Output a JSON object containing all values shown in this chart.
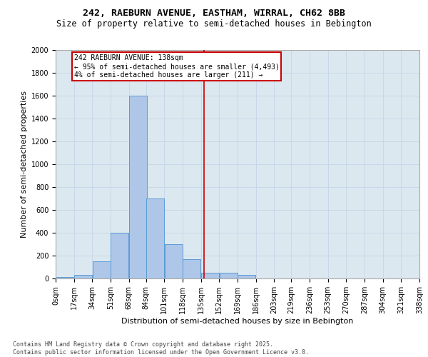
{
  "title1": "242, RAEBURN AVENUE, EASTHAM, WIRRAL, CH62 8BB",
  "title2": "Size of property relative to semi-detached houses in Bebington",
  "xlabel": "Distribution of semi-detached houses by size in Bebington",
  "ylabel": "Number of semi-detached properties",
  "footnote": "Contains HM Land Registry data © Crown copyright and database right 2025.\nContains public sector information licensed under the Open Government Licence v3.0.",
  "bin_edges": [
    0,
    17,
    34,
    51,
    68,
    84,
    101,
    118,
    135,
    152,
    169,
    186,
    203,
    219,
    236,
    253,
    270,
    287,
    304,
    321,
    338
  ],
  "bar_heights": [
    10,
    30,
    150,
    400,
    1600,
    700,
    300,
    170,
    50,
    50,
    30,
    0,
    0,
    0,
    0,
    0,
    0,
    0,
    0,
    0
  ],
  "bar_color": "#aec6e8",
  "bar_edge_color": "#5b9bd5",
  "property_size": 138,
  "vline_color": "#cc0000",
  "annotation_line1": "242 RAEBURN AVENUE: 138sqm",
  "annotation_line2": "← 95% of semi-detached houses are smaller (4,493)",
  "annotation_line3": "4% of semi-detached houses are larger (211) →",
  "annotation_box_color": "#cc0000",
  "ylim": [
    0,
    2000
  ],
  "yticks": [
    0,
    200,
    400,
    600,
    800,
    1000,
    1200,
    1400,
    1600,
    1800,
    2000
  ],
  "grid_color": "#c8d8e8",
  "background_color": "#dce8f0",
  "title1_fontsize": 9.5,
  "title2_fontsize": 8.5,
  "axis_label_fontsize": 8,
  "tick_fontsize": 7,
  "footnote_fontsize": 6,
  "annotation_fontsize": 7
}
